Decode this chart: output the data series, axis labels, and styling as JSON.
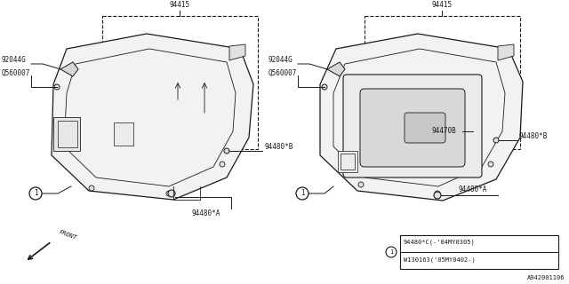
{
  "bg_color": "#ffffff",
  "line_color": "#1a1a1a",
  "fs": 5.5,
  "legend_lines": [
    "94480*C(-'04MY0305)",
    "W130163('05MY0402-)"
  ],
  "diagram_code": "A942001106"
}
